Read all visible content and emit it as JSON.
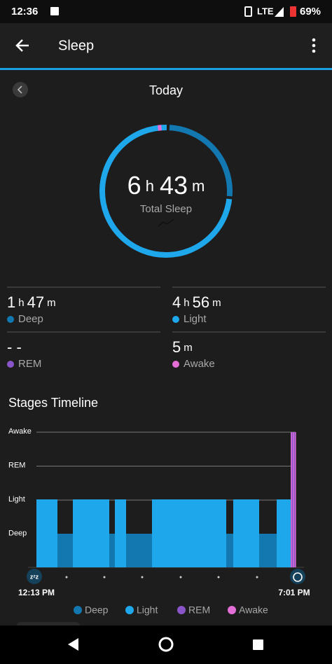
{
  "status_bar": {
    "time": "12:36",
    "network": "LTE",
    "battery": "69%"
  },
  "app_bar": {
    "title": "Sleep"
  },
  "date": "Today",
  "total": {
    "hours": "6",
    "hours_unit": "h",
    "minutes": "43",
    "minutes_unit": "m",
    "label": "Total Sleep"
  },
  "stats": [
    {
      "parts": [
        "1",
        "h",
        "47",
        "m"
      ],
      "label": "Deep"
    },
    {
      "parts": [
        "4",
        "h",
        "56",
        "m"
      ],
      "label": "Light"
    },
    {
      "parts": [
        "- -"
      ],
      "label": "REM"
    },
    {
      "parts": [
        "5",
        "m"
      ],
      "label": "Awake"
    }
  ],
  "timeline": {
    "title": "Stages Timeline",
    "stages": [
      "Awake",
      "REM",
      "Light",
      "Deep"
    ],
    "start": "12:13 PM",
    "end": "7:01 PM",
    "legend": [
      "Deep",
      "Light",
      "REM",
      "Awake"
    ]
  }
}
